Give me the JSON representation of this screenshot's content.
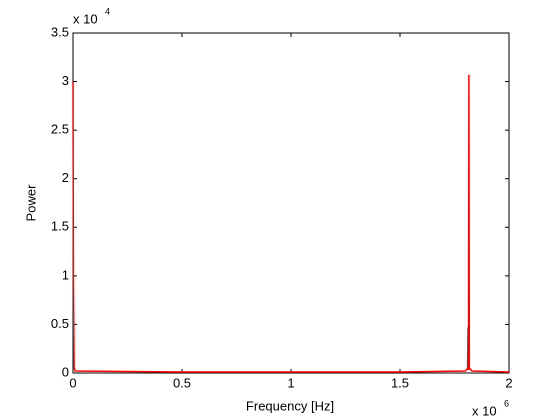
{
  "chart_data": {
    "type": "line",
    "x_label": "Frequency [Hz]",
    "y_label": "Power",
    "x_multiplier": {
      "base": "x 10",
      "exponent": "6"
    },
    "y_multiplier": {
      "base": "x 10",
      "exponent": "4"
    },
    "x": [
      0,
      0.002,
      0.005,
      0.01,
      0.5,
      1.0,
      1.5,
      1.8,
      1.81,
      1.812,
      1.814,
      1.816,
      1.818,
      1.83,
      2.0
    ],
    "series": [
      {
        "color": "#ff0000",
        "values": [
          3.0,
          0.92,
          0.05,
          0.02,
          0.01,
          0.01,
          0.01,
          0.02,
          0.05,
          0.47,
          0.03,
          3.07,
          0.05,
          0.02,
          0.01
        ]
      }
    ],
    "xlim": [
      0,
      2
    ],
    "xticks": [
      0,
      0.5,
      1,
      1.5,
      2
    ],
    "ylim": [
      0,
      3.5
    ],
    "yticks": [
      0,
      0.5,
      1,
      1.5,
      2,
      2.5,
      3,
      3.5
    ],
    "grid": false
  }
}
